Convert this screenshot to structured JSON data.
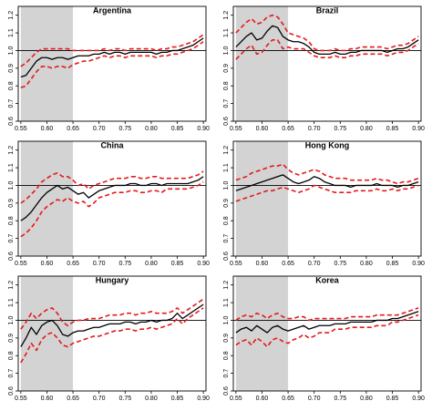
{
  "figure": {
    "colors": {
      "estimate": "#000000",
      "band": "#e41a1c",
      "shade": "#d3d3d3",
      "reference": "#000000"
    }
  },
  "chart_data": [
    {
      "type": "line",
      "title": "Argentina",
      "xlim": [
        0.545,
        0.905
      ],
      "ylim": [
        0.6,
        1.25
      ],
      "x_ticks": [
        "0.55",
        "0.60",
        "0.65",
        "0.70",
        "0.75",
        "0.80",
        "0.85",
        "0.90"
      ],
      "y_ticks": [
        "0.6",
        "0.7",
        "0.8",
        "0.9",
        "1.0",
        "1.1",
        "1.2"
      ],
      "reference_line": 1.0,
      "shaded_region": [
        0.55,
        0.65
      ],
      "x": [
        0.55,
        0.56,
        0.57,
        0.58,
        0.59,
        0.6,
        0.61,
        0.62,
        0.63,
        0.64,
        0.65,
        0.66,
        0.67,
        0.68,
        0.69,
        0.7,
        0.71,
        0.72,
        0.73,
        0.74,
        0.75,
        0.76,
        0.77,
        0.78,
        0.79,
        0.8,
        0.81,
        0.82,
        0.83,
        0.84,
        0.85,
        0.86,
        0.87,
        0.88,
        0.89,
        0.9
      ],
      "series": [
        {
          "values": [
            0.85,
            0.86,
            0.9,
            0.94,
            0.96,
            0.96,
            0.95,
            0.96,
            0.96,
            0.95,
            0.96,
            0.97,
            0.97,
            0.97,
            0.98,
            0.98,
            0.99,
            0.98,
            0.99,
            0.99,
            0.98,
            0.99,
            0.99,
            0.99,
            0.99,
            0.99,
            0.98,
            0.99,
            0.99,
            1.0,
            1.0,
            1.01,
            1.02,
            1.03,
            1.05,
            1.07
          ]
        },
        {
          "values": [
            0.91,
            0.93,
            0.96,
            0.99,
            1.01,
            1.01,
            1.01,
            1.01,
            1.01,
            1.01,
            1.0,
            1.0,
            1.0,
            1.0,
            1.0,
            1.0,
            1.01,
            1.0,
            1.01,
            1.01,
            1.0,
            1.01,
            1.01,
            1.01,
            1.01,
            1.01,
            1.0,
            1.01,
            1.01,
            1.02,
            1.02,
            1.03,
            1.04,
            1.05,
            1.07,
            1.09
          ]
        },
        {
          "values": [
            0.79,
            0.8,
            0.84,
            0.88,
            0.91,
            0.91,
            0.9,
            0.91,
            0.91,
            0.9,
            0.92,
            0.93,
            0.94,
            0.94,
            0.95,
            0.96,
            0.97,
            0.96,
            0.97,
            0.97,
            0.96,
            0.97,
            0.97,
            0.97,
            0.97,
            0.97,
            0.96,
            0.97,
            0.97,
            0.98,
            0.98,
            0.99,
            1.0,
            1.01,
            1.03,
            1.05
          ]
        }
      ]
    },
    {
      "type": "line",
      "title": "Brazil",
      "xlim": [
        0.545,
        0.905
      ],
      "ylim": [
        0.6,
        1.25
      ],
      "x_ticks": [
        "0.55",
        "0.60",
        "0.65",
        "0.70",
        "0.75",
        "0.80",
        "0.85",
        "0.90"
      ],
      "y_ticks": [
        "0.6",
        "0.7",
        "0.8",
        "0.9",
        "1.0",
        "1.1",
        "1.2"
      ],
      "reference_line": 1.0,
      "shaded_region": [
        0.55,
        0.65
      ],
      "x": [
        0.55,
        0.56,
        0.57,
        0.58,
        0.59,
        0.6,
        0.61,
        0.62,
        0.63,
        0.64,
        0.65,
        0.66,
        0.67,
        0.68,
        0.69,
        0.7,
        0.71,
        0.72,
        0.73,
        0.74,
        0.75,
        0.76,
        0.77,
        0.78,
        0.79,
        0.8,
        0.81,
        0.82,
        0.83,
        0.84,
        0.85,
        0.86,
        0.87,
        0.88,
        0.89,
        0.9
      ],
      "series": [
        {
          "values": [
            1.02,
            1.05,
            1.08,
            1.1,
            1.06,
            1.07,
            1.11,
            1.14,
            1.13,
            1.08,
            1.06,
            1.05,
            1.05,
            1.04,
            1.02,
            0.99,
            0.98,
            0.98,
            0.98,
            0.99,
            0.98,
            0.98,
            0.99,
            0.99,
            1.0,
            1.0,
            1.0,
            1.0,
            1.0,
            0.99,
            1.0,
            1.01,
            1.01,
            1.02,
            1.04,
            1.06
          ]
        },
        {
          "values": [
            1.1,
            1.13,
            1.16,
            1.18,
            1.15,
            1.16,
            1.19,
            1.2,
            1.19,
            1.15,
            1.1,
            1.09,
            1.08,
            1.07,
            1.05,
            1.01,
            1.0,
            1.0,
            1.0,
            1.01,
            1.0,
            1.0,
            1.01,
            1.01,
            1.02,
            1.02,
            1.02,
            1.02,
            1.02,
            1.01,
            1.02,
            1.03,
            1.03,
            1.04,
            1.06,
            1.08
          ]
        },
        {
          "values": [
            0.95,
            0.98,
            1.01,
            1.03,
            0.98,
            0.99,
            1.03,
            1.06,
            1.06,
            1.01,
            1.02,
            1.01,
            1.01,
            1.01,
            0.99,
            0.97,
            0.96,
            0.96,
            0.96,
            0.97,
            0.96,
            0.96,
            0.97,
            0.97,
            0.98,
            0.98,
            0.98,
            0.98,
            0.98,
            0.97,
            0.98,
            0.99,
            0.99,
            1.0,
            1.02,
            1.04
          ]
        }
      ]
    },
    {
      "type": "line",
      "title": "China",
      "xlim": [
        0.545,
        0.905
      ],
      "ylim": [
        0.6,
        1.25
      ],
      "x_ticks": [
        "0.55",
        "0.60",
        "0.65",
        "0.70",
        "0.75",
        "0.80",
        "0.85",
        "0.90"
      ],
      "y_ticks": [
        "0.6",
        "0.7",
        "0.8",
        "0.9",
        "1.0",
        "1.1",
        "1.2"
      ],
      "reference_line": 1.0,
      "shaded_region": [
        0.55,
        0.65
      ],
      "x": [
        0.55,
        0.56,
        0.57,
        0.58,
        0.59,
        0.6,
        0.61,
        0.62,
        0.63,
        0.64,
        0.65,
        0.66,
        0.67,
        0.68,
        0.69,
        0.7,
        0.71,
        0.72,
        0.73,
        0.74,
        0.75,
        0.76,
        0.77,
        0.78,
        0.79,
        0.8,
        0.81,
        0.82,
        0.83,
        0.84,
        0.85,
        0.86,
        0.87,
        0.88,
        0.89,
        0.9
      ],
      "series": [
        {
          "values": [
            0.8,
            0.82,
            0.85,
            0.89,
            0.93,
            0.96,
            0.98,
            1.0,
            0.98,
            0.99,
            0.97,
            0.95,
            0.96,
            0.93,
            0.95,
            0.97,
            0.98,
            0.99,
            1.0,
            1.0,
            1.0,
            1.01,
            1.01,
            1.0,
            1.0,
            1.01,
            1.01,
            1.0,
            1.01,
            1.01,
            1.01,
            1.01,
            1.01,
            1.02,
            1.03,
            1.05
          ]
        },
        {
          "values": [
            0.9,
            0.92,
            0.95,
            0.98,
            1.02,
            1.04,
            1.06,
            1.07,
            1.05,
            1.05,
            1.03,
            1.0,
            1.01,
            0.98,
            1.0,
            1.01,
            1.02,
            1.03,
            1.04,
            1.04,
            1.04,
            1.05,
            1.05,
            1.04,
            1.04,
            1.05,
            1.05,
            1.04,
            1.04,
            1.04,
            1.04,
            1.04,
            1.04,
            1.05,
            1.06,
            1.08
          ]
        },
        {
          "values": [
            0.71,
            0.73,
            0.76,
            0.8,
            0.85,
            0.88,
            0.9,
            0.92,
            0.91,
            0.93,
            0.91,
            0.9,
            0.91,
            0.88,
            0.9,
            0.93,
            0.94,
            0.95,
            0.96,
            0.96,
            0.96,
            0.97,
            0.97,
            0.96,
            0.96,
            0.97,
            0.97,
            0.96,
            0.98,
            0.98,
            0.98,
            0.98,
            0.98,
            0.99,
            1.0,
            1.02
          ]
        }
      ]
    },
    {
      "type": "line",
      "title": "Hong Kong",
      "xlim": [
        0.545,
        0.905
      ],
      "ylim": [
        0.6,
        1.25
      ],
      "x_ticks": [
        "0.55",
        "0.60",
        "0.65",
        "0.70",
        "0.75",
        "0.80",
        "0.85",
        "0.90"
      ],
      "y_ticks": [
        "0.6",
        "0.7",
        "0.8",
        "0.9",
        "1.0",
        "1.1",
        "1.2"
      ],
      "reference_line": 1.0,
      "shaded_region": [
        0.55,
        0.65
      ],
      "x": [
        0.55,
        0.56,
        0.57,
        0.58,
        0.59,
        0.6,
        0.61,
        0.62,
        0.63,
        0.64,
        0.65,
        0.66,
        0.67,
        0.68,
        0.69,
        0.7,
        0.71,
        0.72,
        0.73,
        0.74,
        0.75,
        0.76,
        0.77,
        0.78,
        0.79,
        0.8,
        0.81,
        0.82,
        0.83,
        0.84,
        0.85,
        0.86,
        0.87,
        0.88,
        0.89,
        0.9
      ],
      "series": [
        {
          "values": [
            0.97,
            0.98,
            0.99,
            1.0,
            1.01,
            1.02,
            1.03,
            1.04,
            1.05,
            1.06,
            1.04,
            1.02,
            1.01,
            1.02,
            1.03,
            1.05,
            1.04,
            1.02,
            1.01,
            1.0,
            1.0,
            1.0,
            0.99,
            1.0,
            1.0,
            1.0,
            1.0,
            1.01,
            1.0,
            1.0,
            1.0,
            0.99,
            1.0,
            1.0,
            1.01,
            1.02
          ]
        },
        {
          "values": [
            1.03,
            1.04,
            1.05,
            1.07,
            1.08,
            1.09,
            1.1,
            1.11,
            1.11,
            1.12,
            1.09,
            1.07,
            1.06,
            1.07,
            1.08,
            1.09,
            1.08,
            1.06,
            1.05,
            1.04,
            1.04,
            1.04,
            1.03,
            1.03,
            1.03,
            1.03,
            1.03,
            1.04,
            1.03,
            1.03,
            1.02,
            1.01,
            1.02,
            1.02,
            1.03,
            1.04
          ]
        },
        {
          "values": [
            0.91,
            0.92,
            0.93,
            0.94,
            0.95,
            0.96,
            0.97,
            0.97,
            0.98,
            0.99,
            0.98,
            0.97,
            0.96,
            0.97,
            0.98,
            1.0,
            0.99,
            0.98,
            0.97,
            0.96,
            0.96,
            0.96,
            0.96,
            0.97,
            0.97,
            0.97,
            0.97,
            0.98,
            0.97,
            0.97,
            0.98,
            0.97,
            0.98,
            0.98,
            0.99,
            1.0
          ]
        }
      ]
    },
    {
      "type": "line",
      "title": "Hungary",
      "xlim": [
        0.545,
        0.905
      ],
      "ylim": [
        0.6,
        1.25
      ],
      "x_ticks": [
        "0.55",
        "0.60",
        "0.65",
        "0.70",
        "0.75",
        "0.80",
        "0.85",
        "0.90"
      ],
      "y_ticks": [
        "0.6",
        "0.7",
        "0.8",
        "0.9",
        "1.0",
        "1.1",
        "1.2"
      ],
      "reference_line": 1.0,
      "shaded_region": [
        0.55,
        0.65
      ],
      "x": [
        0.55,
        0.56,
        0.57,
        0.58,
        0.59,
        0.6,
        0.61,
        0.62,
        0.63,
        0.64,
        0.65,
        0.66,
        0.67,
        0.68,
        0.69,
        0.7,
        0.71,
        0.72,
        0.73,
        0.74,
        0.75,
        0.76,
        0.77,
        0.78,
        0.79,
        0.8,
        0.81,
        0.82,
        0.83,
        0.84,
        0.85,
        0.86,
        0.87,
        0.88,
        0.89,
        0.9
      ],
      "series": [
        {
          "values": [
            0.85,
            0.9,
            0.96,
            0.92,
            0.97,
            0.99,
            1.0,
            0.97,
            0.92,
            0.91,
            0.93,
            0.94,
            0.94,
            0.95,
            0.96,
            0.96,
            0.97,
            0.98,
            0.98,
            0.98,
            0.99,
            0.99,
            0.98,
            0.99,
            0.99,
            1.0,
            0.99,
            1.0,
            1.0,
            1.01,
            1.04,
            1.01,
            1.03,
            1.05,
            1.07,
            1.09
          ]
        },
        {
          "values": [
            0.95,
            0.99,
            1.04,
            1.01,
            1.04,
            1.06,
            1.07,
            1.04,
            0.99,
            0.97,
            0.99,
            1.0,
            1.0,
            1.01,
            1.01,
            1.01,
            1.02,
            1.03,
            1.03,
            1.03,
            1.04,
            1.04,
            1.03,
            1.04,
            1.04,
            1.05,
            1.04,
            1.04,
            1.04,
            1.05,
            1.07,
            1.04,
            1.06,
            1.08,
            1.1,
            1.12
          ]
        },
        {
          "values": [
            0.76,
            0.81,
            0.87,
            0.83,
            0.89,
            0.92,
            0.93,
            0.9,
            0.86,
            0.85,
            0.87,
            0.88,
            0.89,
            0.9,
            0.91,
            0.91,
            0.92,
            0.93,
            0.94,
            0.94,
            0.95,
            0.95,
            0.94,
            0.95,
            0.95,
            0.96,
            0.95,
            0.96,
            0.97,
            0.98,
            1.01,
            0.98,
            1.01,
            1.03,
            1.05,
            1.07
          ]
        }
      ]
    },
    {
      "type": "line",
      "title": "Korea",
      "xlim": [
        0.545,
        0.905
      ],
      "ylim": [
        0.6,
        1.25
      ],
      "x_ticks": [
        "0.55",
        "0.60",
        "0.65",
        "0.70",
        "0.75",
        "0.80",
        "0.85",
        "0.90"
      ],
      "y_ticks": [
        "0.6",
        "0.7",
        "0.8",
        "0.9",
        "1.0",
        "1.1",
        "1.2"
      ],
      "reference_line": 1.0,
      "shaded_region": [
        0.55,
        0.65
      ],
      "x": [
        0.55,
        0.56,
        0.57,
        0.58,
        0.59,
        0.6,
        0.61,
        0.62,
        0.63,
        0.64,
        0.65,
        0.66,
        0.67,
        0.68,
        0.69,
        0.7,
        0.71,
        0.72,
        0.73,
        0.74,
        0.75,
        0.76,
        0.77,
        0.78,
        0.79,
        0.8,
        0.81,
        0.82,
        0.83,
        0.84,
        0.85,
        0.86,
        0.87,
        0.88,
        0.89,
        0.9
      ],
      "series": [
        {
          "values": [
            0.93,
            0.95,
            0.96,
            0.94,
            0.97,
            0.95,
            0.93,
            0.96,
            0.97,
            0.95,
            0.94,
            0.95,
            0.96,
            0.97,
            0.95,
            0.96,
            0.97,
            0.97,
            0.97,
            0.98,
            0.98,
            0.98,
            0.99,
            0.99,
            0.99,
            0.99,
            0.99,
            1.0,
            1.0,
            1.0,
            1.01,
            1.01,
            1.02,
            1.03,
            1.04,
            1.05
          ]
        },
        {
          "values": [
            1.0,
            1.02,
            1.03,
            1.02,
            1.04,
            1.03,
            1.01,
            1.03,
            1.04,
            1.02,
            1.01,
            1.01,
            1.02,
            1.02,
            1.0,
            1.01,
            1.01,
            1.01,
            1.01,
            1.01,
            1.01,
            1.01,
            1.02,
            1.02,
            1.02,
            1.02,
            1.02,
            1.03,
            1.03,
            1.03,
            1.03,
            1.03,
            1.04,
            1.05,
            1.06,
            1.07
          ]
        },
        {
          "values": [
            0.86,
            0.88,
            0.89,
            0.86,
            0.9,
            0.88,
            0.85,
            0.89,
            0.9,
            0.88,
            0.87,
            0.89,
            0.9,
            0.92,
            0.9,
            0.91,
            0.93,
            0.93,
            0.93,
            0.95,
            0.95,
            0.95,
            0.96,
            0.96,
            0.96,
            0.96,
            0.96,
            0.97,
            0.97,
            0.97,
            0.99,
            0.99,
            1.0,
            1.01,
            1.02,
            1.03
          ]
        }
      ]
    }
  ]
}
